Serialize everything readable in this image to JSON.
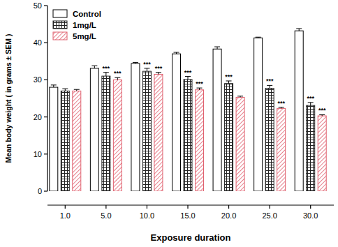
{
  "chart_data": {
    "type": "bar",
    "x_label": "Exposure duration",
    "y_label": "Mean body weight ( in grams ± SEM )",
    "categories": [
      "1.0",
      "5.0",
      "10.0",
      "15.0",
      "20.0",
      "25.0",
      "30.0"
    ],
    "series": [
      {
        "name": "Control",
        "color": "#000000",
        "values": [
          28.0,
          33.1,
          34.4,
          37.0,
          38.3,
          41.3,
          43.2
        ],
        "errors": [
          0.6,
          0.7,
          0.3,
          0.4,
          0.6,
          0.2,
          0.6
        ]
      },
      {
        "name": "1mg/L",
        "color": "#222222",
        "values": [
          27.0,
          31.0,
          32.3,
          30.1,
          29.0,
          27.7,
          23.1
        ],
        "errors": [
          0.6,
          1.0,
          0.8,
          0.8,
          0.7,
          0.8,
          0.8
        ]
      },
      {
        "name": "5mg/L",
        "color": "#e0606e",
        "values": [
          27.0,
          30.0,
          31.5,
          27.3,
          25.3,
          22.3,
          20.3
        ],
        "errors": [
          0.4,
          0.6,
          0.5,
          0.5,
          0.3,
          0.3,
          0.3
        ]
      }
    ],
    "annotations": [
      {
        "series": 1,
        "index": 1,
        "text": "***"
      },
      {
        "series": 2,
        "index": 1,
        "text": "***"
      },
      {
        "series": 1,
        "index": 2,
        "text": "***"
      },
      {
        "series": 2,
        "index": 2,
        "text": "***"
      },
      {
        "series": 1,
        "index": 3,
        "text": "***"
      },
      {
        "series": 2,
        "index": 3,
        "text": "***"
      },
      {
        "series": 1,
        "index": 4,
        "text": "***"
      },
      {
        "series": 1,
        "index": 5,
        "text": "***"
      },
      {
        "series": 2,
        "index": 5,
        "text": "***"
      },
      {
        "series": 1,
        "index": 6,
        "text": "***"
      },
      {
        "series": 2,
        "index": 6,
        "text": "***"
      }
    ],
    "ylim": [
      0,
      50
    ],
    "yticks": [
      0,
      10,
      20,
      30,
      40,
      50
    ],
    "grid": false,
    "legend": "upper-left"
  }
}
